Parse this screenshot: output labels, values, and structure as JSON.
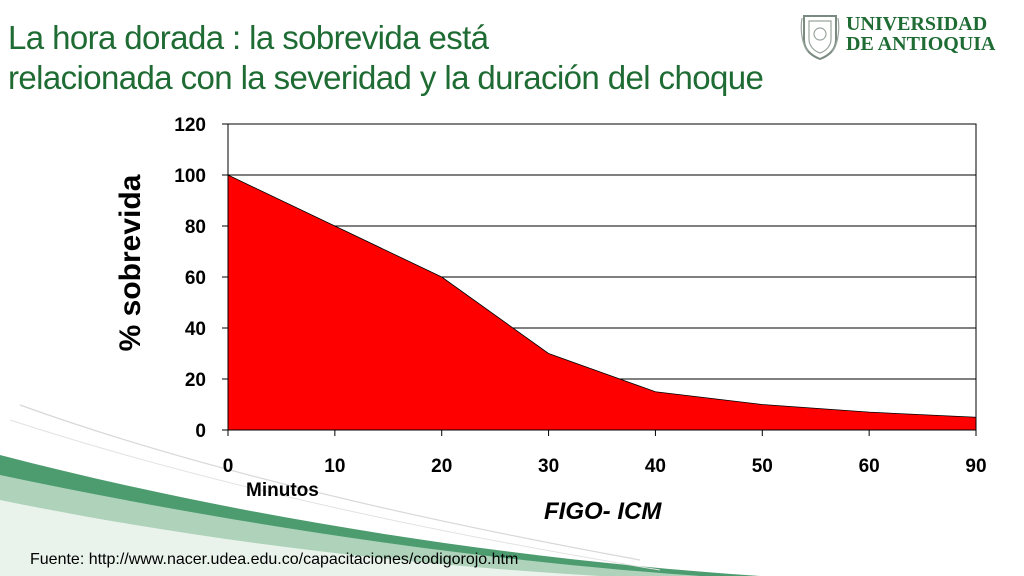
{
  "title": {
    "line1": "La hora dorada : la sobrevida está",
    "line2": "relacionada con la severidad y la  duración del choque"
  },
  "logo": {
    "line1": "UNIVERSIDAD",
    "line2": "DE ANTIOQUIA"
  },
  "colors": {
    "title": "#1e6b33",
    "area_fill": "#ff0000",
    "swoosh": "#2e8b57"
  },
  "chart_data": {
    "type": "area",
    "categories": [
      "0",
      "10",
      "20",
      "30",
      "40",
      "50",
      "60",
      "90"
    ],
    "values": [
      100,
      80,
      60,
      30,
      15,
      10,
      7,
      5
    ],
    "ylabel": "% sobrevida",
    "xlabel": "FIGO- ICM",
    "x_unit_label": "Minutos",
    "ylim": [
      0,
      120
    ],
    "yticks": [
      0,
      20,
      40,
      60,
      80,
      100,
      120
    ],
    "grid": true,
    "legend": "none"
  },
  "source": "Fuente: http://www.nacer.udea.edu.co/capacitaciones/codigorojo.htm"
}
